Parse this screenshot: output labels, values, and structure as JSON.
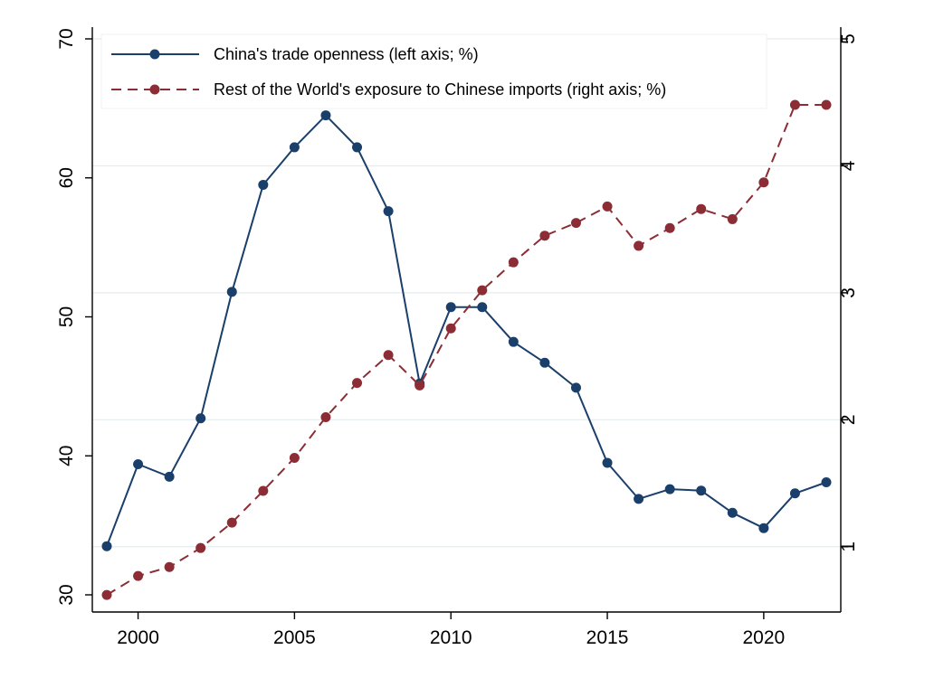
{
  "chart_data": {
    "type": "line",
    "x": [
      1999,
      2000,
      2001,
      2002,
      2003,
      2004,
      2005,
      2006,
      2007,
      2008,
      2009,
      2010,
      2011,
      2012,
      2013,
      2014,
      2015,
      2016,
      2017,
      2018,
      2019,
      2020,
      2021,
      2022
    ],
    "xlim": [
      1998.5,
      2022.5
    ],
    "xticks": [
      2000,
      2005,
      2010,
      2015,
      2020
    ],
    "y_left": {
      "lim": [
        30,
        70
      ],
      "ticks": [
        30,
        40,
        50,
        60,
        70
      ]
    },
    "y_right": {
      "lim": [
        0.5,
        5
      ],
      "ticks": [
        1,
        2,
        3,
        4,
        5
      ]
    },
    "grid": true,
    "legend_position": "top",
    "series": [
      {
        "name": "China's trade openness (left axis; %)",
        "axis": "left",
        "style": "solid",
        "color": "#1a3f6b",
        "values": [
          33.5,
          39.4,
          38.5,
          42.7,
          51.8,
          59.5,
          62.2,
          64.5,
          62.2,
          57.6,
          45.2,
          50.7,
          50.7,
          48.2,
          46.7,
          44.9,
          39.5,
          36.9,
          37.6,
          37.5,
          35.9,
          34.8,
          37.3,
          38.1
        ]
      },
      {
        "name": "Rest of the World's exposure to Chinese imports (right axis; %)",
        "axis": "right",
        "style": "dashed",
        "color": "#8c2d35",
        "values": [
          0.62,
          0.77,
          0.84,
          0.99,
          1.19,
          1.44,
          1.7,
          2.02,
          2.29,
          2.51,
          2.27,
          2.72,
          3.02,
          3.24,
          3.45,
          3.55,
          3.68,
          3.37,
          3.51,
          3.66,
          3.58,
          3.87,
          4.48,
          4.48
        ]
      }
    ]
  }
}
